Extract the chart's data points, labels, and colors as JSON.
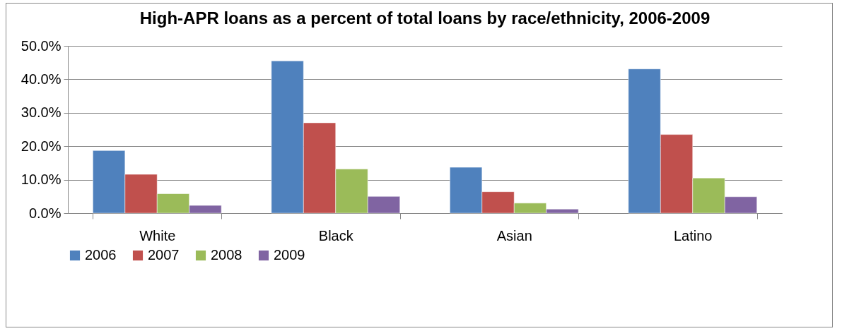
{
  "chart_data": {
    "type": "bar",
    "title": "High-APR loans as a percent of total loans by race/ethnicity, 2006-2009",
    "categories": [
      "White",
      "Black",
      "Asian",
      "Latino"
    ],
    "series": [
      {
        "name": "2006",
        "color": "#4f81bd",
        "values": [
          18.7,
          45.5,
          13.7,
          43.1
        ]
      },
      {
        "name": "2007",
        "color": "#c0504d",
        "values": [
          11.6,
          27.0,
          6.4,
          23.5
        ]
      },
      {
        "name": "2008",
        "color": "#9bbb59",
        "values": [
          5.8,
          13.2,
          3.0,
          10.5
        ]
      },
      {
        "name": "2009",
        "color": "#8064a2",
        "values": [
          2.3,
          5.0,
          1.2,
          4.9
        ]
      }
    ],
    "ylim": [
      0,
      50
    ],
    "yticks": [
      {
        "value": 0,
        "label": "0.0%"
      },
      {
        "value": 10,
        "label": "10.0%"
      },
      {
        "value": 20,
        "label": "20.0%"
      },
      {
        "value": 30,
        "label": "30.0%"
      },
      {
        "value": 40,
        "label": "40.0%"
      },
      {
        "value": 50,
        "label": "50.0%"
      }
    ],
    "grid": "y",
    "legend": "bottom"
  }
}
